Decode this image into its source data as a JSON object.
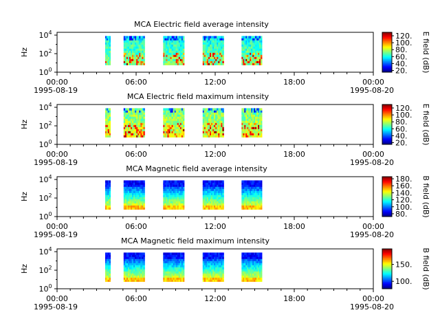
{
  "chart_data": [
    {
      "type": "heatmap",
      "title": "MCA  Electric field average intensity",
      "ylabel": "Hz",
      "y_scale": "log",
      "ylim": [
        1,
        20000
      ],
      "y_ticks": [
        {
          "value": 1,
          "base": "10",
          "exp": "0"
        },
        {
          "value": 100,
          "base": "10",
          "exp": "2"
        },
        {
          "value": 10000,
          "base": "10",
          "exp": "4"
        }
      ],
      "x_ticks": [
        {
          "time": "00:00",
          "date": "1995-08-19"
        },
        {
          "time": "06:00",
          "date": ""
        },
        {
          "time": "12:00",
          "date": ""
        },
        {
          "time": "18:00",
          "date": ""
        },
        {
          "time": "00:00",
          "date": "1995-08-20"
        }
      ],
      "xlim_hours": [
        0,
        24
      ],
      "colorbar": {
        "label": "E field (dB)",
        "range": [
          15,
          130
        ],
        "ticks": [
          "20.",
          "40.",
          "60.",
          "80.",
          "100.",
          "120."
        ]
      },
      "data_segments_hours": [
        [
          3.65,
          4.05
        ],
        [
          5.05,
          6.65
        ],
        [
          8.05,
          9.65
        ],
        [
          11.05,
          12.65
        ],
        [
          14.0,
          15.55
        ]
      ],
      "freq_range_hz": [
        6,
        8000
      ],
      "intensity_profile": "green-cyan background with yellow-red bursts at low frequencies"
    },
    {
      "type": "heatmap",
      "title": "MCA  Electric field maximum intensity",
      "ylabel": "Hz",
      "y_scale": "log",
      "ylim": [
        1,
        20000
      ],
      "y_ticks": [
        {
          "value": 1,
          "base": "10",
          "exp": "0"
        },
        {
          "value": 100,
          "base": "10",
          "exp": "2"
        },
        {
          "value": 10000,
          "base": "10",
          "exp": "4"
        }
      ],
      "x_ticks": [
        {
          "time": "00:00",
          "date": "1995-08-19"
        },
        {
          "time": "06:00",
          "date": ""
        },
        {
          "time": "12:00",
          "date": ""
        },
        {
          "time": "18:00",
          "date": ""
        },
        {
          "time": "00:00",
          "date": "1995-08-20"
        }
      ],
      "xlim_hours": [
        0,
        24
      ],
      "colorbar": {
        "label": "E field (dB)",
        "range": [
          15,
          130
        ],
        "ticks": [
          "20.",
          "40.",
          "60.",
          "80.",
          "100.",
          "120."
        ]
      },
      "data_segments_hours": [
        [
          3.65,
          4.05
        ],
        [
          5.05,
          6.65
        ],
        [
          8.05,
          9.65
        ],
        [
          11.05,
          12.65
        ],
        [
          14.0,
          15.55
        ]
      ],
      "freq_range_hz": [
        6,
        8000
      ],
      "intensity_profile": "green-yellow background with orange bursts"
    },
    {
      "type": "heatmap",
      "title": "MCA  Magnetic field average intensity",
      "ylabel": "Hz",
      "y_scale": "log",
      "ylim": [
        1,
        20000
      ],
      "y_ticks": [
        {
          "value": 1,
          "base": "10",
          "exp": "0"
        },
        {
          "value": 100,
          "base": "10",
          "exp": "2"
        },
        {
          "value": 10000,
          "base": "10",
          "exp": "4"
        }
      ],
      "x_ticks": [
        {
          "time": "00:00",
          "date": "1995-08-19"
        },
        {
          "time": "06:00",
          "date": ""
        },
        {
          "time": "12:00",
          "date": ""
        },
        {
          "time": "18:00",
          "date": ""
        },
        {
          "time": "00:00",
          "date": "1995-08-20"
        }
      ],
      "xlim_hours": [
        0,
        24
      ],
      "colorbar": {
        "label": "B field (dB)",
        "range": [
          72,
          186
        ],
        "ticks": [
          "80.",
          "100.",
          "120.",
          "140.",
          "160.",
          "180."
        ]
      },
      "data_segments_hours": [
        [
          3.65,
          4.05
        ],
        [
          5.05,
          6.65
        ],
        [
          8.05,
          9.65
        ],
        [
          11.05,
          12.65
        ],
        [
          14.0,
          15.55
        ]
      ],
      "freq_range_hz": [
        6,
        8000
      ],
      "intensity_profile": "blue at high frequencies, green mid, yellow at low frequencies"
    },
    {
      "type": "heatmap",
      "title": "MCA  Magnetic field maximum intensity",
      "ylabel": "Hz",
      "y_scale": "log",
      "ylim": [
        1,
        20000
      ],
      "y_ticks": [
        {
          "value": 1,
          "base": "10",
          "exp": "0"
        },
        {
          "value": 100,
          "base": "10",
          "exp": "2"
        },
        {
          "value": 10000,
          "base": "10",
          "exp": "4"
        }
      ],
      "x_ticks": [
        {
          "time": "00:00",
          "date": "1995-08-19"
        },
        {
          "time": "06:00",
          "date": ""
        },
        {
          "time": "12:00",
          "date": ""
        },
        {
          "time": "18:00",
          "date": ""
        },
        {
          "time": "00:00",
          "date": "1995-08-20"
        }
      ],
      "xlim_hours": [
        0,
        24
      ],
      "colorbar": {
        "label": "B field (dB)",
        "range": [
          78,
          196
        ],
        "ticks": [
          "100.",
          "150."
        ]
      },
      "data_segments_hours": [
        [
          3.65,
          4.05
        ],
        [
          5.05,
          6.65
        ],
        [
          8.05,
          9.65
        ],
        [
          11.05,
          12.65
        ],
        [
          14.0,
          15.55
        ]
      ],
      "freq_range_hz": [
        6,
        8000
      ],
      "intensity_profile": "blue at high frequencies, green mid, yellow at low frequencies"
    }
  ]
}
